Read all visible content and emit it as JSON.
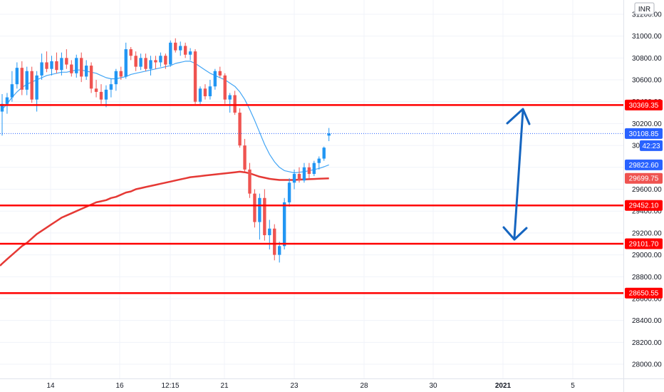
{
  "chart_data": {
    "type": "candlestick",
    "currency": "INR",
    "countdown": "42:23",
    "x_tick_labels": [
      "14",
      "16",
      "12:15",
      "21",
      "23",
      "28",
      "30",
      "2021",
      "5"
    ],
    "y_ticks": [
      "31200.00",
      "31000.00",
      "30800.00",
      "30600.00",
      "30400.00",
      "30200.00",
      "30000.00",
      "29800.00",
      "29600.00",
      "29400.00",
      "29200.00",
      "29000.00",
      "28800.00",
      "28600.00",
      "28400.00",
      "28200.00",
      "28000.00"
    ],
    "y_tick_values": [
      31200,
      31000,
      30800,
      30600,
      30400,
      30200,
      30000,
      29800,
      29600,
      29400,
      29200,
      29000,
      28800,
      28600,
      28400,
      28200,
      28000
    ],
    "ylim": [
      27870,
      31330
    ],
    "horizontal_levels": [
      {
        "value": 30369.35,
        "label": "30369.35"
      },
      {
        "value": 29452.1,
        "label": "29452.10"
      },
      {
        "value": 29101.7,
        "label": "29101.70"
      },
      {
        "value": 28650.55,
        "label": "28650.55"
      }
    ],
    "price_markers": [
      {
        "name": "last-price",
        "value": 30108.85,
        "label": "30108.85",
        "color": "#2962ff"
      },
      {
        "name": "fast-ma",
        "value": 29822.6,
        "label": "29822.60",
        "color": "#2962ff"
      },
      {
        "name": "slow-ma",
        "value": 29699.75,
        "label": "29699.75",
        "color": "#ef5350"
      }
    ],
    "candles": [
      [
        30310,
        30470,
        30090,
        30380
      ],
      [
        30380,
        30480,
        30290,
        30440
      ],
      [
        30440,
        30680,
        30400,
        30560
      ],
      [
        30560,
        30760,
        30520,
        30710
      ],
      [
        30710,
        30770,
        30460,
        30510
      ],
      [
        30510,
        30720,
        30460,
        30680
      ],
      [
        30680,
        30720,
        30390,
        30420
      ],
      [
        30420,
        30680,
        30310,
        30640
      ],
      [
        30640,
        30840,
        30600,
        30760
      ],
      [
        30760,
        30860,
        30670,
        30700
      ],
      [
        30700,
        30820,
        30640,
        30770
      ],
      [
        30770,
        30850,
        30660,
        30690
      ],
      [
        30690,
        30850,
        30640,
        30800
      ],
      [
        30800,
        30880,
        30700,
        30740
      ],
      [
        30740,
        30780,
        30630,
        30660
      ],
      [
        30660,
        30830,
        30620,
        30800
      ],
      [
        30800,
        30850,
        30580,
        30630
      ],
      [
        30630,
        30780,
        30600,
        30730
      ],
      [
        30730,
        30760,
        30480,
        30520
      ],
      [
        30520,
        30600,
        30440,
        30490
      ],
      [
        30490,
        30560,
        30380,
        30420
      ],
      [
        30420,
        30550,
        30350,
        30510
      ],
      [
        30510,
        30610,
        30440,
        30560
      ],
      [
        30560,
        30700,
        30500,
        30680
      ],
      [
        30680,
        30720,
        30600,
        30630
      ],
      [
        30630,
        30940,
        30610,
        30880
      ],
      [
        30880,
        30900,
        30780,
        30820
      ],
      [
        30820,
        30860,
        30680,
        30720
      ],
      [
        30720,
        30840,
        30690,
        30800
      ],
      [
        30800,
        30840,
        30680,
        30700
      ],
      [
        30700,
        30820,
        30640,
        30780
      ],
      [
        30780,
        30820,
        30700,
        30760
      ],
      [
        30760,
        30850,
        30720,
        30820
      ],
      [
        30820,
        30840,
        30700,
        30740
      ],
      [
        30740,
        30960,
        30720,
        30940
      ],
      [
        30940,
        30980,
        30850,
        30870
      ],
      [
        30870,
        30950,
        30820,
        30910
      ],
      [
        30910,
        30940,
        30800,
        30830
      ],
      [
        30830,
        30890,
        30780,
        30860
      ],
      [
        30860,
        30880,
        30380,
        30400
      ],
      [
        30400,
        30540,
        30380,
        30520
      ],
      [
        30520,
        30560,
        30420,
        30450
      ],
      [
        30450,
        30600,
        30420,
        30540
      ],
      [
        30540,
        30700,
        30510,
        30680
      ],
      [
        30680,
        30720,
        30620,
        30640
      ],
      [
        30640,
        30660,
        30380,
        30420
      ],
      [
        30420,
        30480,
        30300,
        30460
      ],
      [
        30460,
        30500,
        30280,
        30300
      ],
      [
        30300,
        30340,
        29980,
        30000
      ],
      [
        30000,
        30060,
        29760,
        29780
      ],
      [
        29780,
        29840,
        29520,
        29560
      ],
      [
        29560,
        29600,
        29250,
        29300
      ],
      [
        29300,
        29560,
        29140,
        29520
      ],
      [
        29520,
        29600,
        29130,
        29180
      ],
      [
        29180,
        29320,
        29050,
        29240
      ],
      [
        29240,
        29280,
        28950,
        29000
      ],
      [
        29000,
        29120,
        28930,
        29080
      ],
      [
        29080,
        29520,
        29050,
        29480
      ],
      [
        29480,
        29700,
        29440,
        29660
      ],
      [
        29660,
        29780,
        29600,
        29740
      ],
      [
        29740,
        29800,
        29660,
        29680
      ],
      [
        29680,
        29840,
        29660,
        29800
      ],
      [
        29800,
        29840,
        29700,
        29740
      ],
      [
        29740,
        29860,
        29720,
        29840
      ],
      [
        29840,
        29900,
        29780,
        29880
      ],
      [
        29880,
        29990,
        29860,
        29980
      ],
      [
        30090,
        30160,
        30040,
        30110
      ]
    ],
    "fast_ma": [
      30330,
      30380,
      30440,
      30490,
      30530,
      30560,
      30580,
      30600,
      30620,
      30640,
      30650,
      30660,
      30670,
      30670,
      30680,
      30690,
      30690,
      30680,
      30670,
      30660,
      30640,
      30620,
      30610,
      30610,
      30620,
      30630,
      30650,
      30660,
      30670,
      30680,
      30690,
      30700,
      30710,
      30720,
      30730,
      30750,
      30760,
      30770,
      30770,
      30750,
      30720,
      30690,
      30660,
      30640,
      30620,
      30600,
      30570,
      30540,
      30490,
      30420,
      30330,
      30230,
      30120,
      30010,
      29920,
      29850,
      29800,
      29770,
      29760,
      29750,
      29755,
      29760,
      29770,
      29780,
      29790,
      29805,
      29822.6
    ],
    "slow_ma": [
      28920,
      28960,
      29000,
      29040,
      29080,
      29110,
      29150,
      29190,
      29220,
      29250,
      29280,
      29310,
      29340,
      29360,
      29380,
      29400,
      29420,
      29440,
      29460,
      29480,
      29490,
      29500,
      29520,
      29530,
      29550,
      29570,
      29580,
      29600,
      29610,
      29620,
      29630,
      29640,
      29650,
      29660,
      29670,
      29680,
      29690,
      29700,
      29710,
      29715,
      29720,
      29725,
      29730,
      29735,
      29740,
      29745,
      29750,
      29755,
      29760,
      29755,
      29745,
      29730,
      29715,
      29705,
      29695,
      29690,
      29685,
      29685,
      29685,
      29685,
      29688,
      29690,
      29692,
      29694,
      29696,
      29698,
      29699.75
    ]
  }
}
